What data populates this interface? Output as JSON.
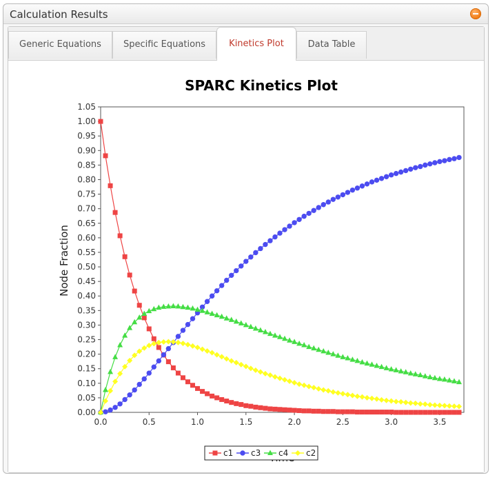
{
  "panel": {
    "title": "Calculation Results",
    "collapse_icon": "minus-circle-icon",
    "accent": "#f07a12"
  },
  "tabs": [
    {
      "label": "Generic Equations",
      "active": false
    },
    {
      "label": "Specific Equations",
      "active": false
    },
    {
      "label": "Kinetics Plot",
      "active": true
    },
    {
      "label": "Data Table",
      "active": false
    }
  ],
  "chart_data": {
    "type": "line",
    "title": "SPARC Kinetics Plot",
    "xlabel": "Time",
    "ylabel": "Node Fraction",
    "xlim": [
      0,
      3.75
    ],
    "ylim": [
      0,
      1.05
    ],
    "xticks": [
      "0.0",
      "0.5",
      "1.0",
      "1.5",
      "2.0",
      "2.5",
      "3.0",
      "3.5"
    ],
    "yticks": [
      "0.00",
      "0.05",
      "0.10",
      "0.15",
      "0.20",
      "0.25",
      "0.30",
      "0.35",
      "0.40",
      "0.45",
      "0.50",
      "0.55",
      "0.60",
      "0.65",
      "0.70",
      "0.75",
      "0.80",
      "0.85",
      "0.90",
      "0.95",
      "1.00",
      "1.05"
    ],
    "x": [
      0,
      0.05,
      0.1,
      0.15,
      0.2,
      0.25,
      0.3,
      0.35,
      0.4,
      0.45,
      0.5,
      0.55,
      0.6,
      0.65,
      0.7,
      0.75,
      0.8,
      0.85,
      0.9,
      0.95,
      1,
      1.05,
      1.1,
      1.15,
      1.2,
      1.25,
      1.3,
      1.35,
      1.4,
      1.45,
      1.5,
      1.55,
      1.6,
      1.65,
      1.7,
      1.75,
      1.8,
      1.85,
      1.9,
      1.95,
      2,
      2.05,
      2.1,
      2.15,
      2.2,
      2.25,
      2.3,
      2.35,
      2.4,
      2.45,
      2.5,
      2.55,
      2.6,
      2.65,
      2.7,
      2.75,
      2.8,
      2.85,
      2.9,
      2.95,
      3,
      3.05,
      3.1,
      3.15,
      3.2,
      3.25,
      3.3,
      3.35,
      3.4,
      3.45,
      3.5,
      3.55,
      3.6,
      3.65,
      3.7
    ],
    "series": [
      {
        "name": "c1",
        "color": "#ee4444",
        "marker": "square",
        "values": [
          1,
          0.882,
          0.779,
          0.687,
          0.607,
          0.535,
          0.472,
          0.417,
          0.368,
          0.325,
          0.287,
          0.253,
          0.223,
          0.197,
          0.174,
          0.153,
          0.135,
          0.119,
          0.105,
          0.093,
          0.082,
          0.072,
          0.064,
          0.056,
          0.05,
          0.044,
          0.039,
          0.034,
          0.03,
          0.027,
          0.023,
          0.021,
          0.018,
          0.016,
          0.014,
          0.012,
          0.011,
          0.01,
          0.009,
          0.008,
          0.007,
          0.006,
          0.005,
          0.005,
          0.004,
          0.004,
          0.003,
          0.003,
          0.003,
          0.002,
          0.002,
          0.002,
          0.002,
          0.001,
          0.001,
          0.001,
          0.001,
          0.001,
          0.001,
          0.001,
          0.001,
          0,
          0,
          0,
          0,
          0,
          0,
          0,
          0,
          0,
          0,
          0,
          0,
          0,
          0
        ]
      },
      {
        "name": "c3",
        "color": "#4c4cf0",
        "marker": "circle",
        "values": [
          0,
          0.002,
          0.008,
          0.017,
          0.029,
          0.044,
          0.06,
          0.077,
          0.096,
          0.115,
          0.135,
          0.156,
          0.177,
          0.198,
          0.219,
          0.24,
          0.261,
          0.282,
          0.302,
          0.322,
          0.342,
          0.362,
          0.381,
          0.4,
          0.418,
          0.436,
          0.454,
          0.471,
          0.487,
          0.503,
          0.519,
          0.534,
          0.549,
          0.563,
          0.577,
          0.59,
          0.603,
          0.616,
          0.628,
          0.64,
          0.652,
          0.663,
          0.674,
          0.684,
          0.694,
          0.704,
          0.714,
          0.723,
          0.732,
          0.74,
          0.748,
          0.756,
          0.764,
          0.771,
          0.778,
          0.785,
          0.792,
          0.798,
          0.804,
          0.81,
          0.816,
          0.821,
          0.826,
          0.831,
          0.836,
          0.841,
          0.845,
          0.85,
          0.854,
          0.858,
          0.862,
          0.865,
          0.869,
          0.872,
          0.876
        ]
      },
      {
        "name": "c4",
        "color": "#44dd44",
        "marker": "triangle",
        "values": [
          0,
          0.077,
          0.139,
          0.19,
          0.231,
          0.264,
          0.29,
          0.31,
          0.326,
          0.339,
          0.348,
          0.355,
          0.36,
          0.363,
          0.364,
          0.365,
          0.364,
          0.362,
          0.36,
          0.357,
          0.353,
          0.349,
          0.344,
          0.339,
          0.334,
          0.329,
          0.323,
          0.318,
          0.312,
          0.306,
          0.3,
          0.294,
          0.288,
          0.282,
          0.276,
          0.27,
          0.264,
          0.259,
          0.253,
          0.247,
          0.242,
          0.236,
          0.231,
          0.225,
          0.22,
          0.215,
          0.21,
          0.205,
          0.2,
          0.195,
          0.19,
          0.186,
          0.181,
          0.177,
          0.172,
          0.168,
          0.164,
          0.16,
          0.156,
          0.152,
          0.148,
          0.145,
          0.141,
          0.138,
          0.134,
          0.131,
          0.128,
          0.124,
          0.121,
          0.118,
          0.115,
          0.113,
          0.11,
          0.107,
          0.104
        ]
      },
      {
        "name": "c2",
        "color": "#ffff22",
        "marker": "diamond",
        "values": [
          0,
          0.039,
          0.074,
          0.106,
          0.133,
          0.157,
          0.178,
          0.196,
          0.21,
          0.221,
          0.23,
          0.236,
          0.24,
          0.242,
          0.243,
          0.242,
          0.24,
          0.237,
          0.233,
          0.228,
          0.223,
          0.217,
          0.211,
          0.205,
          0.198,
          0.191,
          0.184,
          0.177,
          0.171,
          0.164,
          0.158,
          0.151,
          0.145,
          0.139,
          0.133,
          0.128,
          0.122,
          0.117,
          0.112,
          0.107,
          0.102,
          0.097,
          0.093,
          0.089,
          0.085,
          0.081,
          0.077,
          0.074,
          0.07,
          0.067,
          0.064,
          0.061,
          0.058,
          0.055,
          0.053,
          0.05,
          0.048,
          0.046,
          0.043,
          0.041,
          0.039,
          0.037,
          0.036,
          0.034,
          0.032,
          0.031,
          0.029,
          0.028,
          0.026,
          0.025,
          0.024,
          0.023,
          0.022,
          0.021,
          0.02
        ]
      }
    ],
    "legend_position": "bottom-center"
  }
}
